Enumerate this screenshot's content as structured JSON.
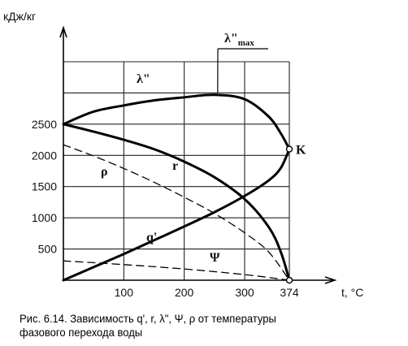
{
  "chart_data": {
    "type": "line",
    "ylabel": "кДж/кг",
    "xlabel": "t, °C",
    "xlim": [
      0,
      374
    ],
    "ylim": [
      0,
      3500
    ],
    "x_ticks": [
      "100",
      "200",
      "300",
      "374"
    ],
    "y_ticks": [
      "500",
      "1000",
      "1500",
      "2000",
      "2500"
    ],
    "grid": true,
    "critical_point_label": "K",
    "max_annotation": "λ\"max",
    "series": [
      {
        "name": "λ\"",
        "style": "solid-thick",
        "x": [
          0,
          50,
          100,
          150,
          200,
          250,
          300,
          340,
          360,
          374
        ],
        "y": [
          2500,
          2700,
          2800,
          2880,
          2930,
          2970,
          2900,
          2620,
          2350,
          2100
        ]
      },
      {
        "name": "r",
        "style": "solid-thick",
        "x": [
          0,
          50,
          100,
          150,
          200,
          250,
          300,
          340,
          360,
          374
        ],
        "y": [
          2500,
          2380,
          2250,
          2100,
          1900,
          1650,
          1300,
          850,
          450,
          0
        ]
      },
      {
        "name": "q'",
        "style": "solid-thick",
        "x": [
          0,
          50,
          100,
          150,
          200,
          250,
          300,
          340,
          360,
          374
        ],
        "y": [
          0,
          210,
          420,
          640,
          860,
          1090,
          1350,
          1600,
          1800,
          2100
        ]
      },
      {
        "name": "ρ",
        "style": "dashed",
        "x": [
          0,
          50,
          100,
          150,
          200,
          250,
          300,
          340,
          374
        ],
        "y": [
          2170,
          1990,
          1790,
          1570,
          1330,
          1070,
          760,
          450,
          0
        ]
      },
      {
        "name": "Ψ",
        "style": "dashed",
        "x": [
          0,
          100,
          200,
          300,
          374
        ],
        "y": [
          310,
          250,
          180,
          90,
          0
        ]
      }
    ]
  },
  "caption": {
    "line1": "Рис. 6.14. Зависимость q', r, λ\", Ψ,  ρ от температуры",
    "line2": "фазового перехода воды"
  }
}
